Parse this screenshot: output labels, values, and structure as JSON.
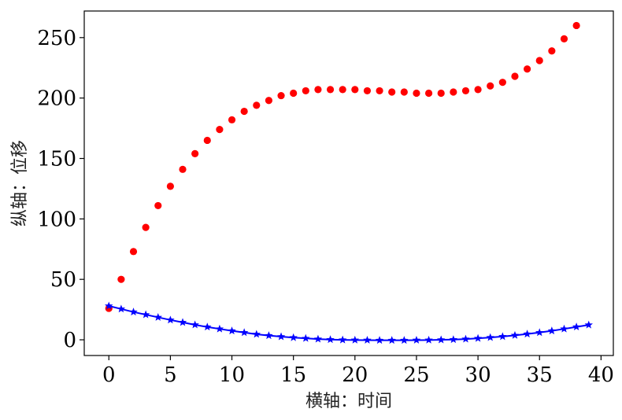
{
  "chart_data": {
    "type": "scatter",
    "title": "",
    "xlabel": "横轴：时间",
    "ylabel": "纵轴：位移",
    "xlim": [
      -2,
      41
    ],
    "ylim": [
      -13,
      272
    ],
    "xticks": [
      0,
      5,
      10,
      15,
      20,
      25,
      30,
      35,
      40
    ],
    "yticks": [
      0,
      50,
      100,
      150,
      200,
      250
    ],
    "grid": false,
    "series": [
      {
        "color": "#ff0000",
        "marker": "circle",
        "line": false,
        "x": [
          0,
          1,
          2,
          3,
          4,
          5,
          6,
          7,
          8,
          9,
          10,
          11,
          12,
          13,
          14,
          15,
          16,
          17,
          18,
          19,
          20,
          21,
          22,
          23,
          24,
          25,
          26,
          27,
          28,
          29,
          30,
          31,
          32,
          33,
          34,
          35,
          36,
          37,
          38
        ],
        "y": [
          26,
          50,
          73,
          93,
          111,
          127,
          141,
          154,
          165,
          174,
          182,
          189,
          194,
          198,
          202,
          204,
          206,
          207,
          207,
          207,
          207,
          206,
          206,
          205,
          205,
          204,
          204,
          204,
          205,
          206,
          207,
          210,
          213,
          218,
          224,
          231,
          239,
          249,
          260
        ]
      },
      {
        "color": "#0000ff",
        "marker": "star",
        "line": true,
        "x": [
          0,
          1,
          2,
          3,
          4,
          5,
          6,
          7,
          8,
          9,
          10,
          11,
          12,
          13,
          14,
          15,
          16,
          17,
          18,
          19,
          20,
          21,
          22,
          23,
          24,
          25,
          26,
          27,
          28,
          29,
          30,
          31,
          32,
          33,
          34,
          35,
          36,
          37,
          38,
          39
        ],
        "y": [
          28,
          25.5,
          23,
          20.8,
          18.6,
          16.4,
          14.4,
          12.4,
          10.6,
          9,
          7.4,
          6,
          4.6,
          3.5,
          2.6,
          1.8,
          1.2,
          0.6,
          0.2,
          -0.1,
          -0.2,
          -0.3,
          -0.4,
          -0.4,
          -0.4,
          -0.3,
          -0.2,
          0,
          0.2,
          0.6,
          1.2,
          1.9,
          2.7,
          3.7,
          4.8,
          6,
          7.4,
          9,
          10.7,
          12.3
        ]
      }
    ]
  }
}
